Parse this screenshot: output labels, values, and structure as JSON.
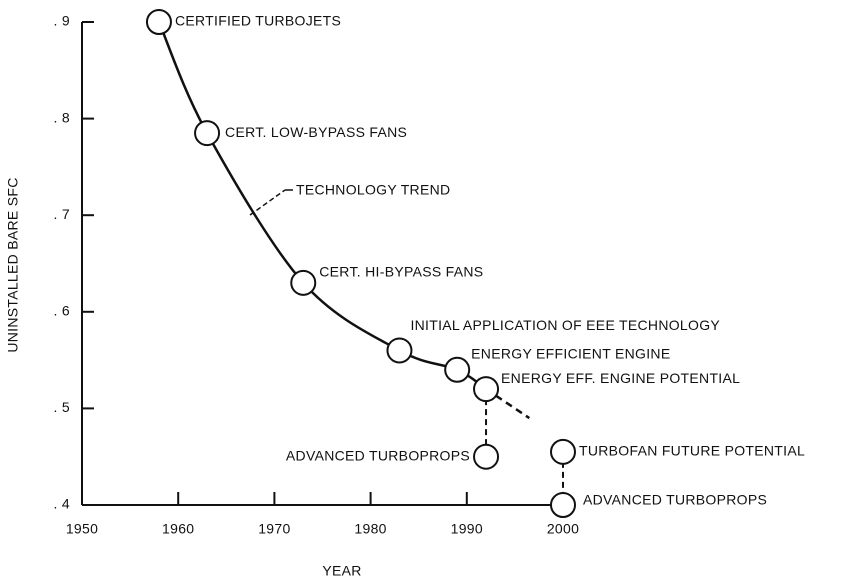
{
  "chart_data": {
    "type": "line",
    "xlabel": "YEAR",
    "ylabel": "UNINSTALLED BARE SFC",
    "xlim": [
      1950,
      2000
    ],
    "xticks": [
      1950,
      1960,
      1970,
      1980,
      1990,
      2000
    ],
    "ylim": [
      0.4,
      0.9
    ],
    "yticks": [
      {
        "value": 0.4,
        "label": ". 4"
      },
      {
        "value": 0.5,
        "label": ". 5"
      },
      {
        "value": 0.6,
        "label": ". 6"
      },
      {
        "value": 0.7,
        "label": ". 7"
      },
      {
        "value": 0.8,
        "label": ". 8"
      },
      {
        "value": 0.9,
        "label": ". 9"
      }
    ],
    "trend": {
      "name": "TECHNOLOGY TREND",
      "x": [
        1958,
        1963,
        1973,
        1983,
        1989,
        1992
      ],
      "values": [
        0.9,
        0.785,
        0.63,
        0.56,
        0.54,
        0.52
      ]
    },
    "trend_extension": {
      "x": [
        1992,
        1996.5
      ],
      "values": [
        0.52,
        0.49
      ]
    },
    "points": [
      {
        "label": "CERTIFIED TURBOJETS",
        "x": 1958,
        "y": 0.9
      },
      {
        "label": "CERT. LOW-BYPASS FANS",
        "x": 1963,
        "y": 0.785
      },
      {
        "label": "CERT. HI-BYPASS FANS",
        "x": 1973,
        "y": 0.63
      },
      {
        "label": "INITIAL APPLICATION OF EEE TECHNOLOGY",
        "x": 1983,
        "y": 0.56
      },
      {
        "label": "ENERGY EFFICIENT ENGINE",
        "x": 1989,
        "y": 0.54
      },
      {
        "label": "ENERGY EFF. ENGINE POTENTIAL",
        "x": 1992,
        "y": 0.52
      },
      {
        "label": "ADVANCED TURBOPROPS",
        "x": 1992,
        "y": 0.45
      },
      {
        "label": "TURBOFAN FUTURE POTENTIAL",
        "x": 2000,
        "y": 0.455
      },
      {
        "label": "ADVANCED TURBOPROPS",
        "x": 2000,
        "y": 0.4
      }
    ]
  }
}
